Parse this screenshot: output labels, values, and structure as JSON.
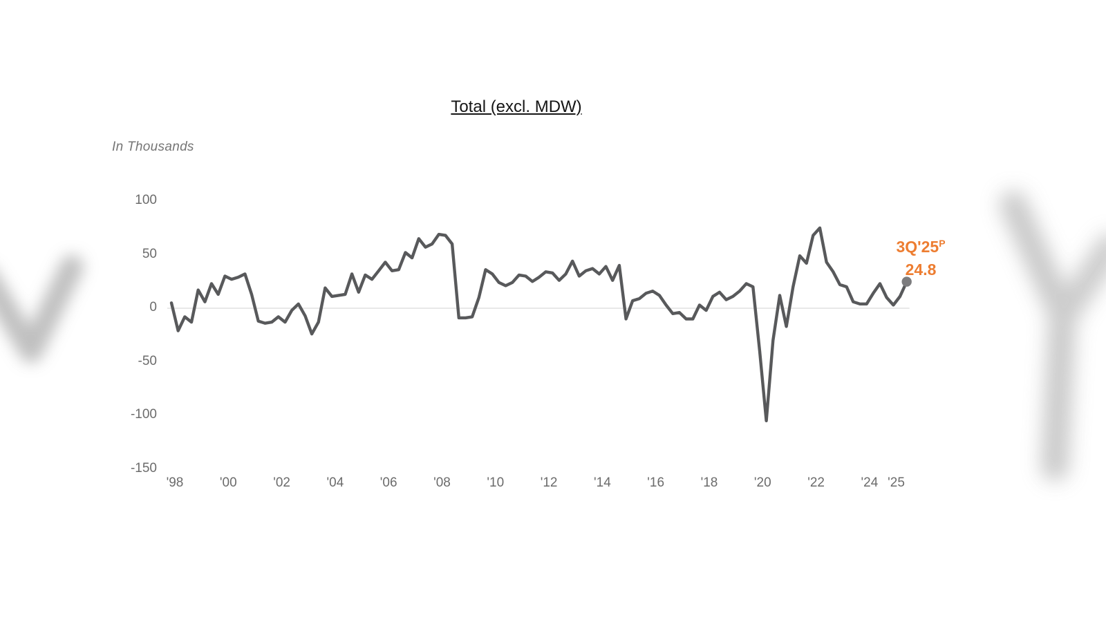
{
  "header": {
    "title": "Total (excl. MDW)"
  },
  "axis_unit_label": "In Thousands",
  "annotation": {
    "period": "3Q'25",
    "superscript": "P",
    "value": "24.8"
  },
  "colors": {
    "series_line": "#58595b",
    "zero_line": "#d9d9d9",
    "axis_text": "#6b6b6b",
    "annotation_orange": "#ED7D31",
    "end_marker_gray": "#7c7c7e",
    "background_blur_gray": "#bcbcbc"
  },
  "chart_data": {
    "type": "line",
    "title": "Total (excl. MDW)",
    "ylabel": "In Thousands",
    "frequency": "quarterly",
    "start_period": "1998 Q1",
    "end_period": "2025 Q3",
    "ylim": [
      -150,
      100
    ],
    "y_ticks": [
      100,
      50,
      0,
      -50,
      -100,
      -150
    ],
    "x_tick_years": [
      1998,
      2000,
      2002,
      2004,
      2006,
      2008,
      2010,
      2012,
      2014,
      2016,
      2018,
      2020,
      2022,
      2024,
      2025
    ],
    "x_tick_labels": [
      "'98",
      "'00",
      "'02",
      "'04",
      "'06",
      "'08",
      "'10",
      "'12",
      "'14",
      "'16",
      "'18",
      "'20",
      "'22",
      "'24",
      "'25"
    ],
    "grid": "horizontal zero line only",
    "legend": "none",
    "values": [
      5,
      -21,
      -8,
      -13,
      17,
      6,
      23,
      13,
      30,
      27,
      29,
      32,
      13,
      -12,
      -14,
      -13,
      -8,
      -13,
      -2,
      4,
      -7,
      -24,
      -13,
      19,
      11,
      12,
      13,
      32,
      15,
      31,
      27,
      35,
      43,
      35,
      36,
      52,
      47,
      65,
      57,
      60,
      69,
      68,
      60,
      -9,
      -9,
      -8,
      10,
      36,
      32,
      24,
      21,
      24,
      31,
      30,
      25,
      29,
      34,
      33,
      26,
      32,
      44,
      30,
      35,
      37,
      32,
      39,
      26,
      40,
      -10,
      7,
      9,
      14,
      16,
      12,
      3,
      -5,
      -4,
      -10,
      -10,
      3,
      -2,
      11,
      15,
      8,
      11,
      16,
      23,
      20,
      -40,
      -105,
      -30,
      12,
      -17,
      20,
      49,
      42,
      68,
      75,
      43,
      34,
      22,
      20,
      6,
      4,
      4,
      14,
      23,
      10,
      3,
      11,
      24.8
    ],
    "final_point": {
      "period": "3Q'25",
      "preliminary": true,
      "value": 24.8,
      "marker": "gray dot"
    }
  }
}
